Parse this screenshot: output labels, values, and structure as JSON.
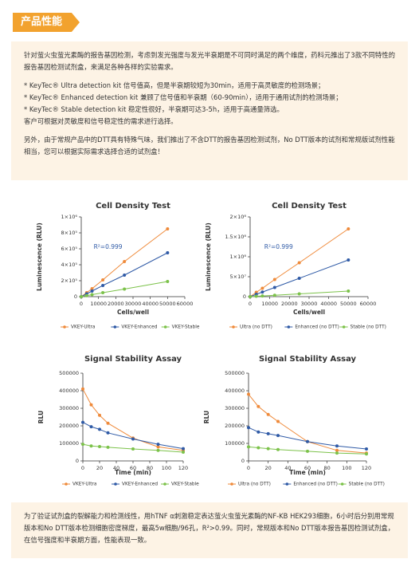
{
  "header": {
    "title": "产品性能"
  },
  "intro": {
    "paragraph": "针对萤火虫萤光素酶的报告基因检测，考虑到发光强度与发光半衰期是不可同时满足的两个维度，药科元推出了3款不同特性的报告基因检测试剂盒，来满足各种各样的实验需求。",
    "bullets": [
      "* KeyTec® Ultra detection kit 信号值高，但是半衰期较短为30min，适用于高灵敏度的检测场景；",
      "* KeyTec® Enhanced detection kit 兼顾了信号值和半衰期（60-90min），适用于通用试剂的检测场景；",
      "* KeyTec® Stable detection kit 稳定性很好，半衰期可达3-5h，适用于高通量筛选。"
    ],
    "choice": "客户可根据对灵敏度和信号稳定性的需求进行选择。",
    "dtt": "另外，由于常规产品中的DTT具有特殊气味，我们推出了不含DTT的报告基因检测试剂，No DTT版本的试剂和常规版试剂性能相当，您可以根据实际需求选择合适的试剂盒！"
  },
  "chart_data": [
    {
      "type": "line",
      "title": "Cell Density Test",
      "x_label": "Cells/well",
      "y_label": "Luminescence (RLU)",
      "annotation": "R²=0.999",
      "x": [
        0,
        3125,
        6250,
        12500,
        25000,
        50000
      ],
      "series": [
        {
          "name": "VKEY-Ultra",
          "color": "#ef8a3a",
          "values": [
            0,
            50000,
            100000,
            210000,
            440000,
            850000
          ]
        },
        {
          "name": "VKEY-Enhanced",
          "color": "#2f5aa6",
          "values": [
            0,
            35000,
            70000,
            140000,
            270000,
            550000
          ]
        },
        {
          "name": "VKEY-Stable",
          "color": "#7cc24a",
          "values": [
            0,
            12000,
            25000,
            50000,
            95000,
            190000
          ]
        }
      ],
      "xlim": [
        0,
        60000
      ],
      "xticks": [
        0,
        10000,
        20000,
        30000,
        40000,
        50000,
        60000
      ],
      "ylim": [
        0,
        1000000
      ],
      "yticks": [
        0,
        {
          "value": 200000,
          "label": "2×10⁵"
        },
        {
          "value": 400000,
          "label": "4×10⁵"
        },
        {
          "value": 600000,
          "label": "6×10⁵"
        },
        {
          "value": 800000,
          "label": "8×10⁵"
        },
        {
          "value": 1000000,
          "label": "1×10⁶"
        }
      ],
      "legend": "bottom"
    },
    {
      "type": "line",
      "title": "Cell Density Test",
      "x_label": "Cells/well",
      "y_label": "Luminescence (RLU)",
      "annotation": "R²=0.999",
      "x": [
        0,
        3125,
        6250,
        12500,
        25000,
        50000
      ],
      "series": [
        {
          "name": "Ultra (no DTT)",
          "color": "#ef8a3a",
          "values": [
            0,
            11000000,
            21000000,
            43000000,
            85000000,
            170000000
          ]
        },
        {
          "name": "Enhanced (no DTT)",
          "color": "#2f5aa6",
          "values": [
            0,
            5800000,
            11500000,
            23000000,
            46000000,
            92000000
          ]
        },
        {
          "name": "Stable (no DTT)",
          "color": "#7cc24a",
          "values": [
            0,
            900000,
            1800000,
            3500000,
            7000000,
            14000000
          ]
        }
      ],
      "xlim": [
        0,
        60000
      ],
      "xticks": [
        0,
        10000,
        20000,
        30000,
        40000,
        50000,
        60000
      ],
      "ylim": [
        0,
        200000000
      ],
      "yticks": [
        0,
        {
          "value": 50000000,
          "label": "5×10⁷"
        },
        {
          "value": 100000000,
          "label": "1×10⁸"
        },
        {
          "value": 150000000,
          "label": "1.5×10⁸"
        },
        {
          "value": 200000000,
          "label": "2×10⁸"
        }
      ],
      "legend": "bottom"
    },
    {
      "type": "line",
      "title": "Signal Stability Assay",
      "x_label": "Time (min)",
      "y_label": "RLU",
      "x": [
        0,
        10,
        20,
        30,
        60,
        90,
        120
      ],
      "series": [
        {
          "name": "VKEY-Ultra",
          "color": "#ef8a3a",
          "values": [
            410000,
            320000,
            260000,
            215000,
            130000,
            80000,
            60000
          ]
        },
        {
          "name": "VKEY-Enhanced",
          "color": "#2f5aa6",
          "values": [
            220000,
            195000,
            180000,
            160000,
            125000,
            95000,
            70000
          ]
        },
        {
          "name": "VKEY-Stable",
          "color": "#7cc24a",
          "values": [
            95000,
            85000,
            82000,
            78000,
            68000,
            60000,
            50000
          ]
        }
      ],
      "xlim": [
        0,
        120
      ],
      "xticks": [
        0,
        20,
        40,
        60,
        80,
        100,
        120
      ],
      "ylim": [
        0,
        500000
      ],
      "yticks": [
        0,
        100000,
        200000,
        300000,
        400000,
        500000
      ],
      "legend": "bottom"
    },
    {
      "type": "line",
      "title": "Signal Stability Assay",
      "x_label": "Time (min)",
      "y_label": "RLU",
      "x": [
        0,
        10,
        20,
        30,
        60,
        90,
        120
      ],
      "series": [
        {
          "name": "Ultra (no DTT)",
          "color": "#ef8a3a",
          "values": [
            380000,
            310000,
            265000,
            225000,
            110000,
            60000,
            45000
          ]
        },
        {
          "name": "Enhanced (no DTT)",
          "color": "#2f5aa6",
          "values": [
            190000,
            165000,
            155000,
            145000,
            110000,
            85000,
            68000
          ]
        },
        {
          "name": "Stable (no DTT)",
          "color": "#7cc24a",
          "values": [
            80000,
            75000,
            70000,
            65000,
            55000,
            45000,
            40000
          ]
        }
      ],
      "xlim": [
        0,
        120
      ],
      "xticks": [
        0,
        20,
        40,
        60,
        80,
        100,
        120
      ],
      "ylim": [
        0,
        500000
      ],
      "yticks": [
        0,
        100000,
        200000,
        300000,
        400000,
        500000
      ],
      "legend": "bottom"
    }
  ],
  "summary": "为了验证试剂盒的裂解能力和检测线性，用hTNF α刺激稳定表达萤火虫萤光素酶的NF-KB HEK293细胞，6小时后分别用常规版本和No DTT版本检测细胞密度梯度，最高5w细胞/96孔，R²>0.99。同时，常规版本和No DTT版本报告基因检测试剂盒，在信号强度和半衰期方面，性能表现一致。"
}
